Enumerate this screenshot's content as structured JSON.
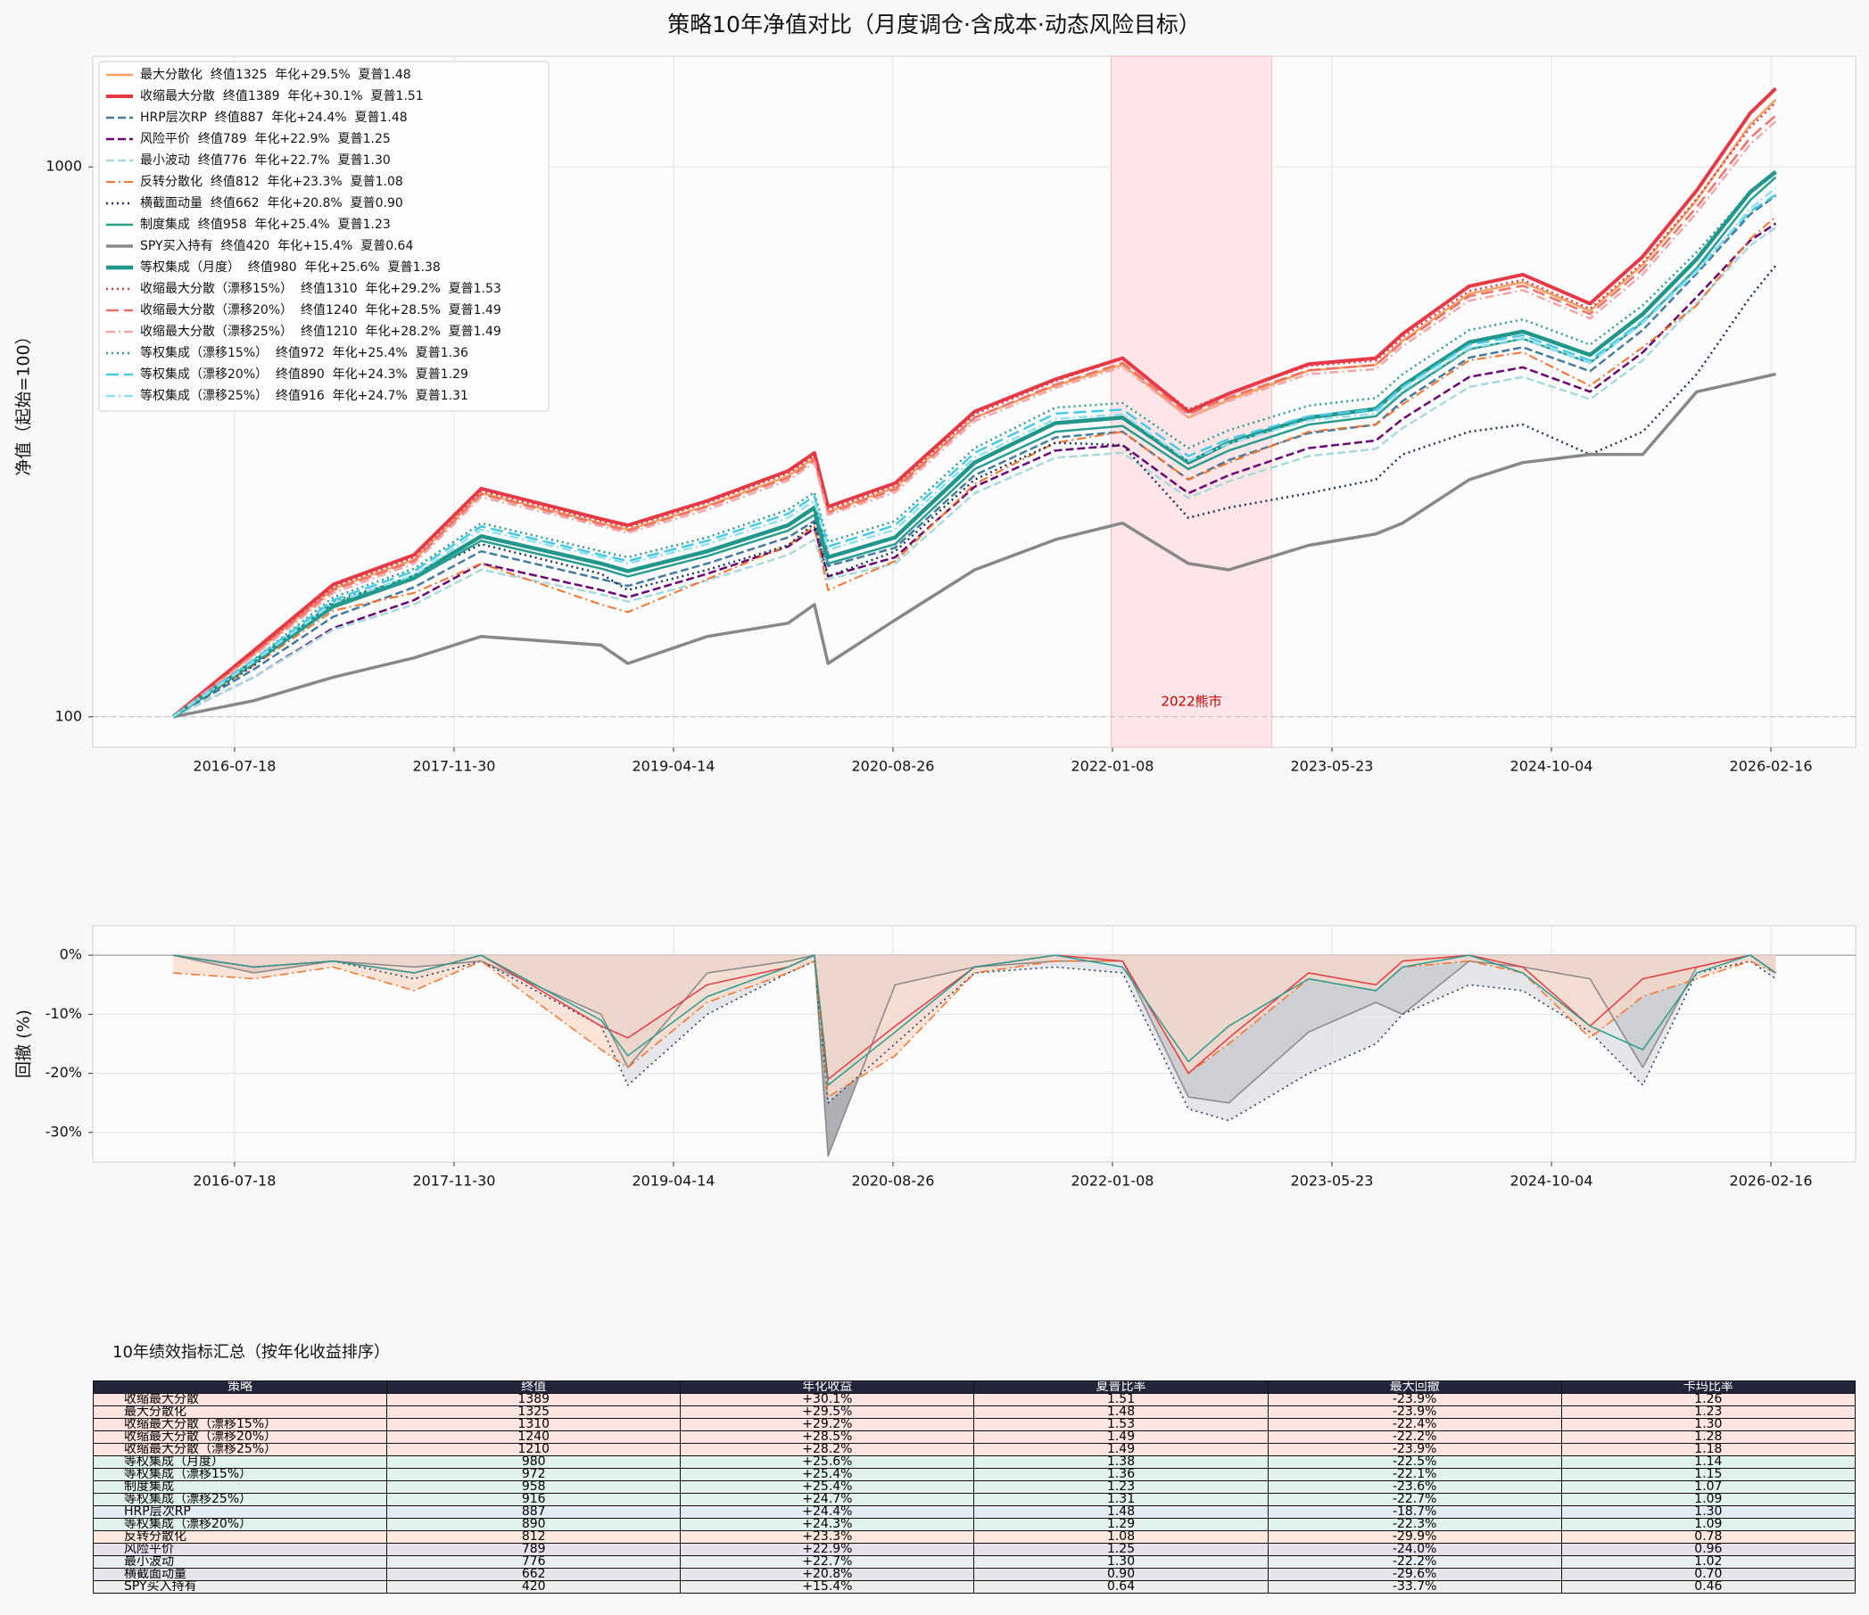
{
  "chart_data": [
    {
      "type": "line",
      "title": "策略10年净值对比（月度调仓·含成本·动态风险目标）",
      "ylabel": "净值（起始=100）",
      "log_y": true,
      "grid": true,
      "legend": "upper left",
      "xlim": [
        "2015-08-30",
        "2026-08-28"
      ],
      "xticks": [
        "2016-07-18",
        "2017-11-30",
        "2019-04-14",
        "2020-08-26",
        "2022-01-08",
        "2023-05-23",
        "2024-10-04",
        "2026-02-16"
      ],
      "ylim": [
        88,
        1590
      ],
      "yticks": [
        100,
        1000
      ],
      "baseline": 100,
      "shade": {
        "from": "2022-01-05",
        "to": "2023-01-06",
        "label": "2022熊市"
      },
      "x": [
        "2016-02-29",
        "2016-08-31",
        "2017-02-28",
        "2017-08-31",
        "2018-01-31",
        "2018-10-31",
        "2018-12-31",
        "2019-06-30",
        "2019-12-31",
        "2020-02-29",
        "2020-03-31",
        "2020-08-31",
        "2021-02-28",
        "2021-08-31",
        "2022-01-31",
        "2022-06-30",
        "2022-09-30",
        "2023-03-31",
        "2023-08-31",
        "2023-10-31",
        "2024-03-31",
        "2024-07-31",
        "2024-12-31",
        "2025-04-30",
        "2025-08-31",
        "2025-12-31",
        "2026-02-27"
      ],
      "series": [
        {
          "name": "最大分散化  终值1325  年化+29.5%  夏普1.48",
          "color": "#f4a261",
          "dash": "solid",
          "width": 2.5,
          "values": [
            100,
            130,
            171,
            193,
            255,
            225,
            219,
            242,
            274,
            296,
            236,
            261,
            350,
            400,
            437,
            350,
            377,
            426,
            437,
            483,
            588,
            617,
            547,
            664,
            870,
            1195,
            1325
          ]
        },
        {
          "name": "收缩最大分散  终值1389  年化+30.1%  夏普1.51",
          "color": "#e63946",
          "dash": "solid",
          "width": 4,
          "values": [
            100,
            132,
            174,
            197,
            260,
            229,
            223,
            247,
            280,
            302,
            241,
            266,
            359,
            411,
            449,
            359,
            387,
            438,
            449,
            497,
            607,
            637,
            564,
            687,
            906,
            1253,
            1389
          ]
        },
        {
          "name": "HRP层次RP  终值887  年化+24.4%  夏普1.48",
          "color": "#457b9d",
          "dash": "dash",
          "width": 2.5,
          "values": [
            100,
            122,
            152,
            172,
            200,
            178,
            173,
            190,
            212,
            227,
            188,
            203,
            275,
            322,
            330,
            270,
            293,
            328,
            340,
            375,
            450,
            470,
            425,
            505,
            640,
            820,
            887
          ]
        },
        {
          "name": "风险平价  终值789  年化+22.9%  夏普1.25",
          "color": "#6a0572",
          "dash": "dash",
          "width": 2.5,
          "values": [
            100,
            118,
            145,
            163,
            190,
            170,
            165,
            182,
            204,
            220,
            180,
            195,
            262,
            305,
            312,
            255,
            275,
            308,
            318,
            348,
            415,
            432,
            390,
            460,
            580,
            735,
            789
          ]
        },
        {
          "name": "最小波动  终值776  年化+22.7%  夏普1.30",
          "color": "#a8dadc",
          "dash": "dash",
          "width": 2.5,
          "values": [
            100,
            118,
            144,
            160,
            185,
            167,
            162,
            177,
            197,
            210,
            178,
            190,
            255,
            296,
            302,
            250,
            268,
            298,
            307,
            335,
            398,
            415,
            378,
            445,
            565,
            720,
            776
          ]
        },
        {
          "name": "反转分散化  终值812  年化+23.3%  夏普1.08",
          "color": "#f3722c",
          "dash": "dashdot",
          "width": 2,
          "values": [
            100,
            124,
            156,
            168,
            190,
            160,
            155,
            178,
            205,
            222,
            170,
            192,
            265,
            315,
            330,
            270,
            290,
            330,
            340,
            370,
            445,
            460,
            400,
            470,
            560,
            740,
            812
          ]
        },
        {
          "name": "横截面动量  终值662  年化+20.8%  夏普0.90",
          "color": "#1d3557",
          "dash": "dot",
          "width": 2.5,
          "values": [
            100,
            124,
            162,
            180,
            206,
            182,
            170,
            185,
            205,
            225,
            180,
            200,
            270,
            315,
            312,
            230,
            240,
            255,
            270,
            300,
            330,
            340,
            300,
            330,
            420,
            580,
            662
          ]
        },
        {
          "name": "制度集成  终值958  年化+25.4%  夏普1.23",
          "color": "#2a9d8f",
          "dash": "solid",
          "width": 2.5,
          "values": [
            100,
            125,
            158,
            178,
            209,
            186,
            180,
            196,
            218,
            233,
            190,
            206,
            282,
            330,
            338,
            282,
            305,
            340,
            352,
            388,
            466,
            487,
            440,
            522,
            655,
            870,
            958
          ]
        },
        {
          "name": "SPY买入持有  终值420  年化+15.4%  夏普0.64",
          "color": "#888888",
          "dash": "solid",
          "width": 3.5,
          "values": [
            100,
            107,
            118,
            128,
            140,
            135,
            125,
            140,
            148,
            160,
            125,
            150,
            185,
            210,
            225,
            190,
            185,
            205,
            215,
            225,
            270,
            290,
            300,
            300,
            390,
            410,
            420
          ]
        },
        {
          "name": "等权集成（月度）  终值980  年化+25.6%  夏普1.38",
          "color": "#21968a",
          "dash": "solid",
          "width": 4.5,
          "values": [
            100,
            126,
            160,
            180,
            213,
            190,
            184,
            200,
            223,
            240,
            195,
            212,
            290,
            342,
            350,
            290,
            315,
            350,
            363,
            400,
            480,
            502,
            455,
            540,
            680,
            900,
            980
          ]
        },
        {
          "name": "收缩最大分散（漂移15%）  终值1310  年化+29.2%  夏普1.53",
          "color": "#e63946",
          "dash": "dot",
          "width": 2.5,
          "values": [
            100,
            131,
            172,
            195,
            257,
            227,
            221,
            245,
            277,
            298,
            238,
            263,
            355,
            408,
            448,
            362,
            388,
            435,
            444,
            490,
            595,
            623,
            552,
            670,
            875,
            1180,
            1310
          ]
        },
        {
          "name": "收缩最大分散（漂移20%）  终值1240  年化+28.5%  夏普1.49",
          "color": "#f07167",
          "dash": "longdash",
          "width": 2.5,
          "values": [
            100,
            130,
            170,
            192,
            254,
            224,
            218,
            241,
            272,
            293,
            235,
            259,
            350,
            402,
            440,
            355,
            381,
            427,
            436,
            480,
            582,
            608,
            540,
            652,
            845,
            1130,
            1240
          ]
        },
        {
          "name": "收缩最大分散（漂移25%）  终值1210  年化+28.2%  夏普1.49",
          "color": "#f4a6a6",
          "dash": "dashdot",
          "width": 2.5,
          "values": [
            100,
            129,
            168,
            190,
            251,
            222,
            216,
            238,
            269,
            290,
            233,
            256,
            345,
            396,
            433,
            350,
            375,
            420,
            429,
            472,
            571,
            597,
            530,
            638,
            826,
            1100,
            1210
          ]
        },
        {
          "name": "等权集成（漂移15%）  终值972  年化+25.4%  夏普1.36",
          "color": "#2a9d8f",
          "dash": "dot",
          "width": 2.5,
          "values": [
            100,
            127,
            165,
            186,
            225,
            200,
            195,
            212,
            238,
            256,
            208,
            227,
            308,
            365,
            372,
            308,
            332,
            368,
            380,
            420,
            505,
            528,
            475,
            560,
            700,
            900,
            972
          ]
        },
        {
          "name": "等权集成（漂移20%）  终值890  年化+24.3%  夏普1.29",
          "color": "#48cae4",
          "dash": "longdash",
          "width": 2.5,
          "values": [
            100,
            127,
            163,
            184,
            222,
            197,
            192,
            209,
            234,
            252,
            204,
            223,
            302,
            356,
            362,
            298,
            320,
            352,
            362,
            398,
            475,
            494,
            445,
            525,
            650,
            830,
            890
          ]
        },
        {
          "name": "等权集成（漂移25%）  终值916  年化+24.7%  夏普1.31",
          "color": "#90e0ef",
          "dash": "dashdot",
          "width": 2.5,
          "values": [
            100,
            126,
            161,
            181,
            219,
            195,
            190,
            206,
            230,
            247,
            201,
            219,
            296,
            348,
            355,
            292,
            314,
            346,
            356,
            392,
            468,
            488,
            440,
            520,
            645,
            840,
            916
          ]
        }
      ]
    },
    {
      "type": "line",
      "ylabel": "回撤 (%)",
      "grid": true,
      "xlim": [
        "2015-08-30",
        "2026-08-28"
      ],
      "xticks": [
        "2016-07-18",
        "2017-11-30",
        "2019-04-14",
        "2020-08-26",
        "2022-01-08",
        "2023-05-23",
        "2024-10-04",
        "2026-02-16"
      ],
      "ylim": [
        -35,
        5
      ],
      "yticks": [
        {
          "value": 0,
          "label": "0%"
        },
        {
          "value": -10,
          "label": "-10%"
        },
        {
          "value": -20,
          "label": "-20%"
        },
        {
          "value": -30,
          "label": "-30%"
        }
      ],
      "x": [
        "2016-02-29",
        "2016-08-31",
        "2017-02-28",
        "2017-08-31",
        "2018-01-31",
        "2018-10-31",
        "2018-12-31",
        "2019-06-30",
        "2019-12-31",
        "2020-02-29",
        "2020-03-31",
        "2020-08-31",
        "2021-02-28",
        "2021-08-31",
        "2022-01-31",
        "2022-06-30",
        "2022-09-30",
        "2023-03-31",
        "2023-08-31",
        "2023-10-31",
        "2024-03-31",
        "2024-07-31",
        "2024-12-31",
        "2025-04-30",
        "2025-08-31",
        "2025-12-31",
        "2026-02-27"
      ],
      "series": [
        {
          "color": "#888888",
          "fill": "#8e8f96",
          "dash": "solid",
          "width": 1.5,
          "values": [
            0,
            -3,
            -1,
            -2,
            -1,
            -10,
            -19,
            -3,
            -1,
            0,
            -34,
            -5,
            -2,
            -1,
            -1,
            -24,
            -25,
            -13,
            -8,
            -10,
            -1,
            -2,
            -4,
            -19,
            -2,
            0,
            -3
          ]
        },
        {
          "color": "#1d3557",
          "fill": "#dcdde0",
          "dash": "dot",
          "width": 1.5,
          "values": [
            0,
            -2,
            -1,
            -4,
            -1,
            -12,
            -22,
            -10,
            -3,
            -1,
            -25,
            -15,
            -3,
            -2,
            -3,
            -26,
            -28,
            -20,
            -15,
            -10,
            -5,
            -6,
            -13,
            -22,
            -3,
            -1,
            -4
          ]
        },
        {
          "color": "#f3722c",
          "fill": "#fbd9c8",
          "dash": "dashdot",
          "width": 1.5,
          "values": [
            -3,
            -4,
            -2,
            -6,
            -1,
            -16,
            -19,
            -8,
            -3,
            -1,
            -24,
            -17,
            -3,
            -1,
            -1,
            -20,
            -15,
            -4,
            -6,
            -2,
            -1,
            -3,
            -14,
            -7,
            -4,
            -1,
            -3
          ]
        },
        {
          "color": "#e63946",
          "dash": "solid",
          "width": 1.5,
          "values": [
            0,
            -2,
            -1,
            -3,
            0,
            -12,
            -14,
            -5,
            -2,
            0,
            -21,
            -12,
            -2,
            0,
            -1,
            -20,
            -14,
            -3,
            -5,
            -1,
            0,
            -2,
            -12,
            -4,
            -2,
            0,
            -3
          ]
        },
        {
          "color": "#2a9d8f",
          "dash": "solid",
          "width": 1.5,
          "values": [
            0,
            -2,
            -1,
            -3,
            0,
            -11,
            -17,
            -7,
            -2,
            0,
            -22,
            -13,
            -2,
            0,
            -2,
            -18,
            -12,
            -4,
            -6,
            -2,
            0,
            -3,
            -12,
            -16,
            -3,
            0,
            -3
          ]
        }
      ]
    }
  ],
  "table": {
    "title": "10年绩效指标汇总（按年化收益排序）",
    "columns": [
      "策略",
      "终值",
      "年化收益",
      "夏普比率",
      "最大回撤",
      "卡玛比率"
    ],
    "row_colors": [
      "#fce4e1",
      "#fce4e1",
      "#fce4e1",
      "#fce4e1",
      "#fce4e1",
      "#e1f1ee",
      "#e1f1ee",
      "#e1f1ee",
      "#e1f1ee",
      "#e5edf4",
      "#e1f1ee",
      "#fde8dd",
      "#e7e1ee",
      "#e8eef1",
      "#e4e6ec",
      "#eeeeee"
    ],
    "rows": [
      [
        "收缩最大分散",
        "1389",
        "+30.1%",
        "1.51",
        "-23.9%",
        "1.26"
      ],
      [
        "最大分散化",
        "1325",
        "+29.5%",
        "1.48",
        "-23.9%",
        "1.23"
      ],
      [
        "收缩最大分散（漂移15%）",
        "1310",
        "+29.2%",
        "1.53",
        "-22.4%",
        "1.30"
      ],
      [
        "收缩最大分散（漂移20%）",
        "1240",
        "+28.5%",
        "1.49",
        "-22.2%",
        "1.28"
      ],
      [
        "收缩最大分散（漂移25%）",
        "1210",
        "+28.2%",
        "1.49",
        "-23.9%",
        "1.18"
      ],
      [
        "等权集成（月度）",
        "980",
        "+25.6%",
        "1.38",
        "-22.5%",
        "1.14"
      ],
      [
        "等权集成（漂移15%）",
        "972",
        "+25.4%",
        "1.36",
        "-22.1%",
        "1.15"
      ],
      [
        "制度集成",
        "958",
        "+25.4%",
        "1.23",
        "-23.6%",
        "1.07"
      ],
      [
        "等权集成（漂移25%）",
        "916",
        "+24.7%",
        "1.31",
        "-22.7%",
        "1.09"
      ],
      [
        "HRP层次RP",
        "887",
        "+24.4%",
        "1.48",
        "-18.7%",
        "1.30"
      ],
      [
        "等权集成（漂移20%）",
        "890",
        "+24.3%",
        "1.29",
        "-22.3%",
        "1.09"
      ],
      [
        "反转分散化",
        "812",
        "+23.3%",
        "1.08",
        "-29.9%",
        "0.78"
      ],
      [
        "风险平价",
        "789",
        "+22.9%",
        "1.25",
        "-24.0%",
        "0.96"
      ],
      [
        "最小波动",
        "776",
        "+22.7%",
        "1.30",
        "-22.2%",
        "1.02"
      ],
      [
        "横截面动量",
        "662",
        "+20.8%",
        "0.90",
        "-29.6%",
        "0.70"
      ],
      [
        "SPY买入持有",
        "420",
        "+15.4%",
        "0.64",
        "-33.7%",
        "0.46"
      ]
    ]
  }
}
